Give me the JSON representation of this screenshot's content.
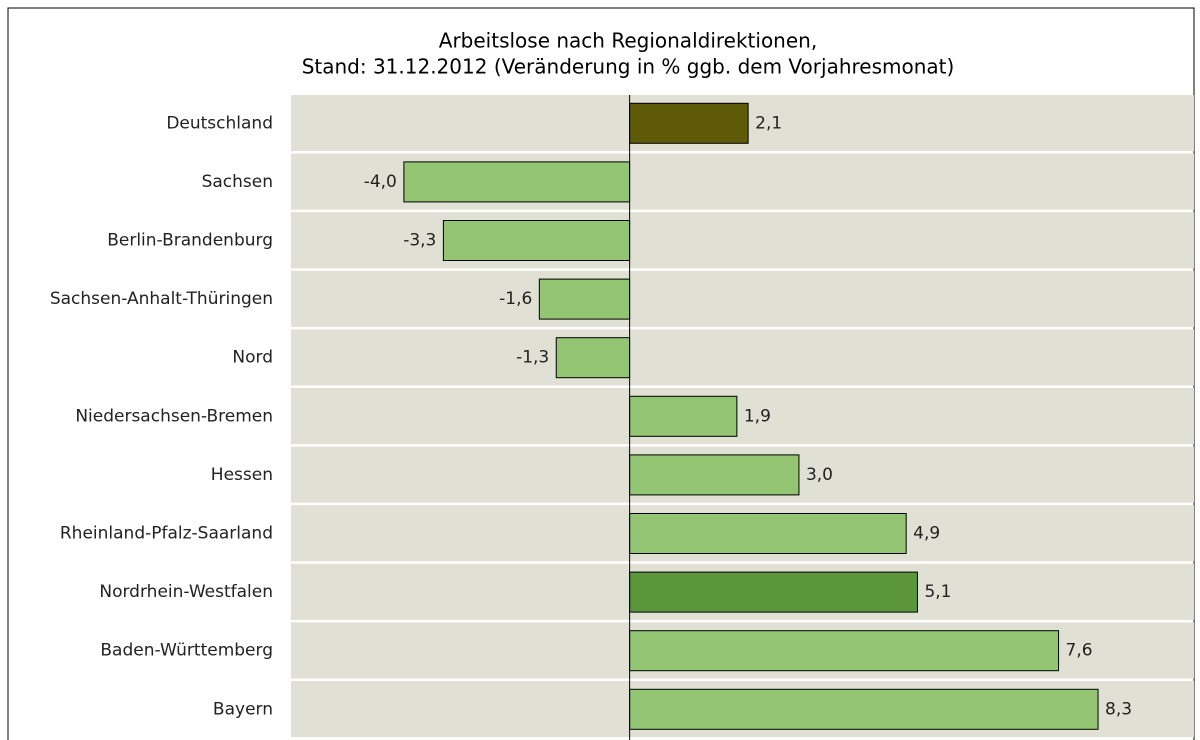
{
  "chart_data": {
    "type": "bar",
    "orientation": "horizontal",
    "title": "Arbeitslose nach Regionaldirektionen,",
    "subtitle": "Stand: 31.12.2012  (Veränderung in % ggb. dem Vorjahresmonat)",
    "categories": [
      "Deutschland",
      "Sachsen",
      "Berlin-Brandenburg",
      "Sachsen-Anhalt-Thüringen",
      "Nord",
      "Niedersachsen-Bremen",
      "Hessen",
      "Rheinland-Pfalz-Saarland",
      "Nordrhein-Westfalen",
      "Baden-Württemberg",
      "Bayern"
    ],
    "values": [
      2.1,
      -4.0,
      -3.3,
      -1.6,
      -1.3,
      1.9,
      3.0,
      4.9,
      5.1,
      7.6,
      8.3
    ],
    "value_labels": [
      "2,1",
      "-4,0",
      "-3,3",
      "-1,6",
      "-1,3",
      "1,9",
      "3,0",
      "4,9",
      "5,1",
      "7,6",
      "8,3"
    ],
    "colors": [
      "#5e5a08",
      "#93c572",
      "#93c572",
      "#93c572",
      "#93c572",
      "#93c572",
      "#93c572",
      "#93c572",
      "#5b963a",
      "#93c572",
      "#93c572"
    ],
    "xlim": [
      -6,
      10
    ]
  }
}
